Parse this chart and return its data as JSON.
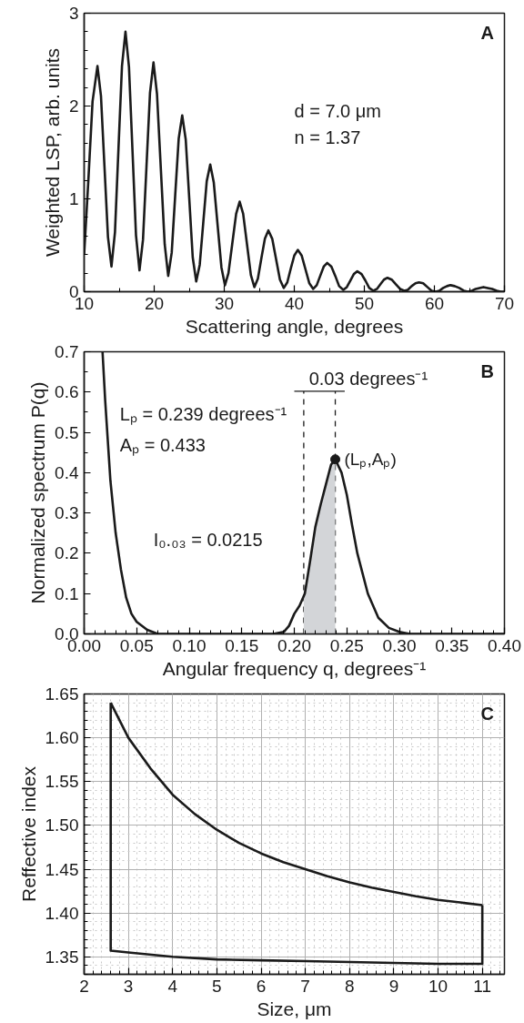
{
  "chart_data": [
    {
      "type": "line",
      "title": "A",
      "xlabel": "Scattering angle, degrees",
      "ylabel": "Weighted LSP, arb. units",
      "xlim": [
        10,
        70
      ],
      "ylim": [
        0,
        3
      ],
      "xticks": [
        10,
        20,
        30,
        40,
        50,
        60,
        70
      ],
      "yticks": [
        0,
        1,
        2,
        3
      ],
      "grid": false,
      "annotations": [
        "d = 7.0 μm",
        "n = 1.37"
      ],
      "series": [
        {
          "color": "#1a1a1a",
          "x": [
            10.0,
            10.6,
            11.2,
            11.9,
            12.4,
            12.9,
            13.4,
            13.9,
            14.4,
            14.9,
            15.4,
            15.9,
            16.4,
            16.9,
            17.4,
            17.9,
            18.4,
            18.9,
            19.4,
            19.9,
            20.4,
            20.95,
            21.5,
            22.0,
            22.5,
            23.0,
            23.5,
            24.0,
            24.5,
            25.0,
            25.5,
            26.0,
            26.5,
            27.0,
            27.5,
            28.0,
            28.5,
            29.05,
            29.6,
            30.1,
            30.6,
            31.15,
            31.7,
            32.2,
            32.7,
            33.25,
            33.8,
            34.3,
            34.8,
            35.3,
            35.8,
            36.3,
            36.85,
            37.4,
            37.95,
            38.5,
            39.0,
            39.5,
            40.0,
            40.5,
            41.05,
            41.6,
            42.15,
            42.7,
            43.2,
            43.7,
            44.2,
            44.7,
            45.3,
            45.85,
            46.4,
            47.0,
            47.5,
            48.0,
            48.5,
            49.0,
            49.6,
            50.15,
            50.7,
            51.3,
            51.8,
            52.3,
            52.8,
            53.3,
            53.9,
            54.5,
            55.1,
            55.7,
            56.2,
            56.75,
            57.3,
            57.8,
            58.4,
            59.0,
            59.6,
            60.2,
            60.7,
            61.25,
            61.8,
            62.3,
            62.9,
            63.55,
            64.2,
            64.8,
            65.35,
            65.9,
            66.45,
            67.0,
            67.6,
            68.25,
            68.9,
            69.5,
            70.0
          ],
          "values": [
            0.4,
            1.2,
            2.05,
            2.43,
            2.11,
            1.35,
            0.59,
            0.27,
            0.64,
            1.54,
            2.43,
            2.8,
            2.42,
            1.52,
            0.61,
            0.23,
            0.56,
            1.35,
            2.14,
            2.47,
            2.13,
            1.32,
            0.51,
            0.17,
            0.42,
            1.04,
            1.65,
            1.9,
            1.64,
            1.01,
            0.37,
            0.11,
            0.29,
            0.74,
            1.19,
            1.37,
            1.18,
            0.72,
            0.26,
            0.07,
            0.2,
            0.52,
            0.84,
            0.97,
            0.84,
            0.51,
            0.18,
            0.05,
            0.14,
            0.36,
            0.57,
            0.66,
            0.57,
            0.35,
            0.13,
            0.04,
            0.1,
            0.25,
            0.39,
            0.45,
            0.39,
            0.24,
            0.09,
            0.03,
            0.07,
            0.17,
            0.27,
            0.31,
            0.27,
            0.17,
            0.06,
            0.02,
            0.05,
            0.12,
            0.19,
            0.22,
            0.19,
            0.12,
            0.04,
            0.01,
            0.03,
            0.08,
            0.13,
            0.15,
            0.13,
            0.08,
            0.03,
            0.01,
            0.02,
            0.06,
            0.09,
            0.1,
            0.09,
            0.05,
            0.01,
            0.0,
            0.01,
            0.04,
            0.06,
            0.07,
            0.06,
            0.04,
            0.01,
            0.0,
            0.01,
            0.03,
            0.04,
            0.05,
            0.04,
            0.03,
            0.01,
            0.0,
            0.0
          ]
        }
      ]
    },
    {
      "type": "line",
      "title": "B",
      "xlabel": "Angular frequency q, degrees⁻¹",
      "ylabel": "Normalized spectrum P(q)",
      "xlim": [
        0,
        0.4
      ],
      "ylim": [
        0,
        0.7
      ],
      "xticks": [
        {
          "value": 0,
          "label": "0.00"
        },
        {
          "value": 0.05,
          "label": "0.05"
        },
        {
          "value": 0.1,
          "label": "0.10"
        },
        {
          "value": 0.15,
          "label": "0.15"
        },
        {
          "value": 0.2,
          "label": "0.20"
        },
        {
          "value": 0.25,
          "label": "0.25"
        },
        {
          "value": 0.3,
          "label": "0.30"
        },
        {
          "value": 0.35,
          "label": "0.35"
        },
        {
          "value": 0.4,
          "label": "0.40"
        }
      ],
      "yticks": [
        {
          "value": 0,
          "label": "0.0"
        },
        0.1,
        0.2,
        0.3,
        0.4,
        0.5,
        0.6,
        0.7
      ],
      "grid": false,
      "annotations": [
        "Lₚ = 0.239 degrees⁻¹",
        "Aₚ = 0.433",
        "I₀.₀₃ = 0.0215",
        "0.03 degrees⁻¹",
        {
          "text": "(Lₚ,Aₚ)",
          "x": 0.239,
          "y": 0.433
        }
      ],
      "ref_lines": [
        {
          "axis": "x",
          "value": 0.209,
          "line_style": "dashed",
          "color": "#1a1a1a"
        },
        {
          "axis": "x",
          "value": 0.239,
          "line_style": "dashed",
          "color": "#1a1a1a"
        }
      ],
      "series": [
        {
          "type": "area",
          "color": "#d3d5d8",
          "x": [
            0.209,
            0.215,
            0.22,
            0.225,
            0.23,
            0.235,
            0.239
          ],
          "values": [
            0.095,
            0.18,
            0.265,
            0.32,
            0.37,
            0.42,
            0.433
          ]
        },
        {
          "type": "line",
          "color": "#1a1a1a",
          "x": [
            0.0175,
            0.02,
            0.025,
            0.03,
            0.035,
            0.04,
            0.045,
            0.05,
            0.06,
            0.07,
            0.1,
            0.15,
            0.18,
            0.19,
            0.195,
            0.2,
            0.205,
            0.21,
            0.215,
            0.22,
            0.225,
            0.23,
            0.235,
            0.239,
            0.245,
            0.25,
            0.255,
            0.26,
            0.265,
            0.27,
            0.275,
            0.28,
            0.29,
            0.3,
            0.31,
            0.35,
            0.4
          ],
          "values": [
            0.7,
            0.58,
            0.38,
            0.25,
            0.16,
            0.09,
            0.05,
            0.03,
            0.01,
            0.0,
            0.0,
            0.0,
            0.0,
            0.005,
            0.02,
            0.05,
            0.07,
            0.1,
            0.18,
            0.265,
            0.32,
            0.37,
            0.42,
            0.433,
            0.4,
            0.345,
            0.27,
            0.2,
            0.15,
            0.1,
            0.07,
            0.04,
            0.015,
            0.005,
            0.0,
            0.0,
            0.0
          ]
        },
        {
          "type": "scatter",
          "marker": "circle",
          "color": "#1a1a1a",
          "x": [
            0.239
          ],
          "values": [
            0.433
          ]
        }
      ]
    },
    {
      "type": "line",
      "title": "C",
      "xlabel": "Size, μm",
      "ylabel": "Reffective index",
      "xlim": [
        2,
        11.5
      ],
      "ylim": [
        1.33,
        1.65
      ],
      "xticks": [
        2,
        3,
        4,
        5,
        6,
        7,
        8,
        9,
        10,
        11
      ],
      "yticks": [
        {
          "value": 1.35,
          "label": "1.35"
        },
        {
          "value": 1.4,
          "label": "1.40"
        },
        {
          "value": 1.45,
          "label": "1.45"
        },
        {
          "value": 1.5,
          "label": "1.50"
        },
        {
          "value": 1.55,
          "label": "1.55"
        },
        {
          "value": 1.6,
          "label": "1.60"
        },
        {
          "value": 1.65,
          "label": "1.65"
        }
      ],
      "grid": true,
      "series": [
        {
          "color": "#1a1a1a",
          "x": [
            2.6,
            3.0,
            3.5,
            4.0,
            4.5,
            5.0,
            5.5,
            6.0,
            6.5,
            7.0,
            7.5,
            8.0,
            8.5,
            9.0,
            9.5,
            10.0,
            10.5,
            11.0
          ],
          "values": [
            1.64,
            1.6,
            1.565,
            1.535,
            1.513,
            1.495,
            1.48,
            1.468,
            1.458,
            1.45,
            1.442,
            1.435,
            1.429,
            1.424,
            1.419,
            1.415,
            1.412,
            1.409
          ]
        },
        {
          "color": "#1a1a1a",
          "x": [
            2.6,
            2.6,
            3.0,
            4.0,
            5.0,
            6.0,
            7.0,
            8.0,
            9.0,
            10.0,
            11.0,
            11.0
          ],
          "values": [
            1.64,
            1.357,
            1.355,
            1.35,
            1.347,
            1.346,
            1.345,
            1.344,
            1.343,
            1.342,
            1.342,
            1.409
          ]
        }
      ]
    }
  ]
}
